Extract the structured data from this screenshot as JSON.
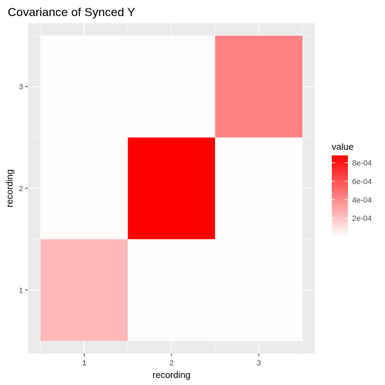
{
  "chart_data": {
    "type": "heatmap",
    "title": "Covariance of Synced Y",
    "xlabel": "recording",
    "ylabel": "recording",
    "x_categories": [
      "1",
      "2",
      "3"
    ],
    "y_categories": [
      "1",
      "2",
      "3"
    ],
    "cells": [
      {
        "x": "1",
        "y": "1",
        "value": 0.00025
      },
      {
        "x": "2",
        "y": "1",
        "value": 1e-05
      },
      {
        "x": "3",
        "y": "1",
        "value": 3e-06
      },
      {
        "x": "1",
        "y": "2",
        "value": 1e-05
      },
      {
        "x": "2",
        "y": "2",
        "value": 0.00088
      },
      {
        "x": "3",
        "y": "2",
        "value": 8e-06
      },
      {
        "x": "1",
        "y": "3",
        "value": 3e-06
      },
      {
        "x": "2",
        "y": "3",
        "value": 8e-06
      },
      {
        "x": "3",
        "y": "3",
        "value": 0.00043
      }
    ],
    "legend": {
      "title": "value",
      "position": "right",
      "low_color": "#ffffff",
      "high_color": "#ff0000",
      "min": 0,
      "max": 0.00088,
      "breaks": [
        0.0002,
        0.0004,
        0.0006,
        0.0008
      ],
      "labels": [
        "2e-04",
        "4e-04",
        "6e-04",
        "8e-04"
      ]
    },
    "grid": true,
    "panel_background": "#ebebeb"
  }
}
